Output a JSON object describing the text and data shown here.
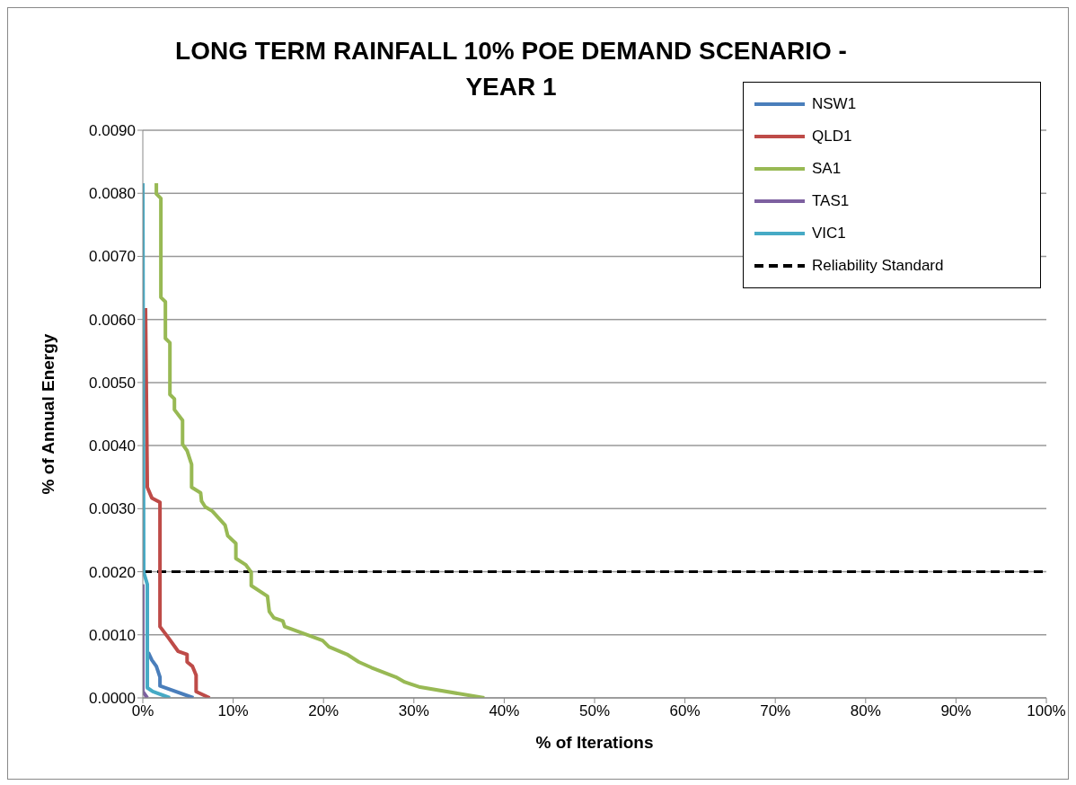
{
  "chart_data": {
    "type": "line",
    "title": "LONG TERM RAINFALL 10% POE DEMAND SCENARIO - YEAR 1",
    "xlabel": "% of Iterations",
    "ylabel": "% of Annual Energy",
    "xlim": [
      0,
      100
    ],
    "xticks": [
      {
        "value": 0,
        "label": "0%"
      },
      {
        "value": 10,
        "label": "10%"
      },
      {
        "value": 20,
        "label": "20%"
      },
      {
        "value": 30,
        "label": "30%"
      },
      {
        "value": 40,
        "label": "40%"
      },
      {
        "value": 50,
        "label": "50%"
      },
      {
        "value": 60,
        "label": "60%"
      },
      {
        "value": 70,
        "label": "70%"
      },
      {
        "value": 80,
        "label": "80%"
      },
      {
        "value": 90,
        "label": "90%"
      },
      {
        "value": 100,
        "label": "100%"
      }
    ],
    "ylim": [
      0,
      0.009
    ],
    "yticks": [
      {
        "value": 0,
        "label": "0.0000"
      },
      {
        "value": 0.001,
        "label": "0.0010"
      },
      {
        "value": 0.002,
        "label": "0.0020"
      },
      {
        "value": 0.003,
        "label": "0.0030"
      },
      {
        "value": 0.004,
        "label": "0.0040"
      },
      {
        "value": 0.005,
        "label": "0.0050"
      },
      {
        "value": 0.006,
        "label": "0.0060"
      },
      {
        "value": 0.007,
        "label": "0.0070"
      },
      {
        "value": 0.008,
        "label": "0.0080"
      },
      {
        "value": 0.009,
        "label": "0.0090"
      }
    ],
    "grid": "y",
    "legend": "top right",
    "marker": "none",
    "line_style": "solid",
    "series": [
      {
        "name": "NSW1",
        "color": "#4a7ebb",
        "x": [
          0.6,
          1.0,
          1.5,
          1.9,
          1.9,
          5.6
        ],
        "values": [
          0.00072,
          0.0006,
          0.0005,
          0.00033,
          0.00019,
          0
        ]
      },
      {
        "name": "QLD1",
        "color": "#be4b48",
        "x": [
          0.3,
          0.5,
          1.0,
          1.9,
          1.9,
          2.8,
          3.9,
          4.9,
          4.9,
          5.5,
          5.9,
          5.9,
          7.4
        ],
        "values": [
          0.00618,
          0.00334,
          0.00317,
          0.0031,
          0.00113,
          0.00096,
          0.00074,
          0.00069,
          0.00057,
          0.0005,
          0.00036,
          0.0001,
          0
        ]
      },
      {
        "name": "SA1",
        "color": "#98b954",
        "x": [
          1.5,
          1.5,
          2.0,
          2.0,
          2.5,
          2.5,
          3.0,
          3.0,
          3.5,
          3.5,
          4.4,
          4.4,
          4.9,
          5.4,
          5.4,
          6.4,
          6.5,
          6.9,
          7.7,
          9.1,
          9.4,
          10.3,
          10.3,
          11.4,
          12.0,
          12.0,
          13.8,
          14.0,
          14.5,
          15.5,
          15.7,
          19.9,
          20.6,
          22.6,
          23.9,
          25.3,
          28.0,
          29.0,
          30.7,
          37.8
        ],
        "values": [
          0.00816,
          0.00799,
          0.00792,
          0.00635,
          0.00628,
          0.0057,
          0.00563,
          0.00481,
          0.00474,
          0.00457,
          0.0044,
          0.00402,
          0.00392,
          0.0037,
          0.00334,
          0.00325,
          0.00312,
          0.00303,
          0.00296,
          0.00274,
          0.00257,
          0.00245,
          0.00221,
          0.00211,
          0.00199,
          0.00178,
          0.00161,
          0.00137,
          0.00127,
          0.00122,
          0.00113,
          0.00091,
          0.00081,
          0.00069,
          0.00057,
          0.00048,
          0.00033,
          0.00025,
          0.00017,
          0
        ]
      },
      {
        "name": "TAS1",
        "color": "#7d60a0",
        "x": [
          0,
          0,
          0.5
        ],
        "values": [
          0.0018,
          0.0001,
          0
        ]
      },
      {
        "name": "VIC1",
        "color": "#46aac5",
        "x": [
          0,
          0.1,
          0.5,
          0.5,
          1.1,
          3.0
        ],
        "values": [
          0.00816,
          0.00199,
          0.0018,
          0.00016,
          0.0001,
          0
        ]
      }
    ],
    "ref_lines": [
      {
        "axis": "y",
        "value": 0.002,
        "label": "Reliability Standard",
        "color": "#000000",
        "line_style": "dashed"
      }
    ]
  }
}
